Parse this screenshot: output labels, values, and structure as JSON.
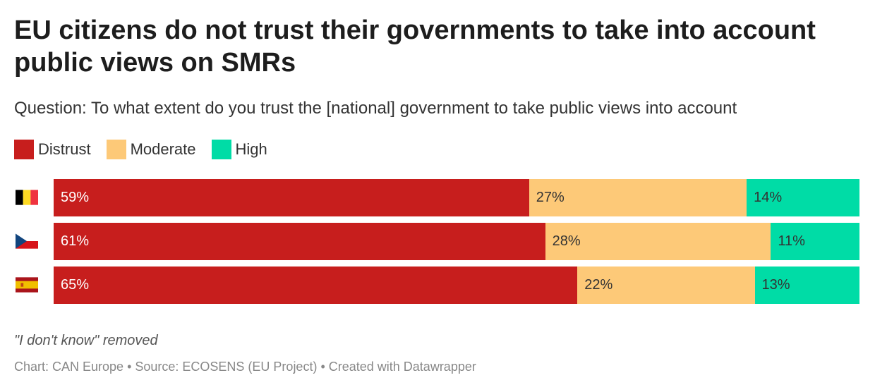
{
  "chart_data": {
    "type": "bar",
    "orientation": "horizontal-stacked-100",
    "title": "EU citizens do not trust their governments to take into account public views on SMRs",
    "subtitle": "Question: To what extent do you trust the [national] government to take public views into account",
    "categories": [
      "Belgium",
      "Czech Republic",
      "Spain"
    ],
    "category_icons": [
      "belgium-flag",
      "czech-flag",
      "spain-flag"
    ],
    "series": [
      {
        "name": "Distrust",
        "color": "#c71e1d",
        "label_color": "#ffffff",
        "values": [
          59,
          61,
          65
        ]
      },
      {
        "name": "Moderate",
        "color": "#fdc978",
        "label_color": "#333333",
        "values": [
          27,
          28,
          22
        ]
      },
      {
        "name": "High",
        "color": "#00dca6",
        "label_color": "#333333",
        "values": [
          14,
          11,
          13
        ]
      }
    ],
    "value_suffix": "%",
    "xlim": [
      0,
      100
    ],
    "legend_position": "top-left",
    "grid": false,
    "note": "\"I don't know\" removed",
    "footer": "Chart: CAN Europe • Source: ECOSENS (EU Project) • Created with Datawrapper"
  }
}
